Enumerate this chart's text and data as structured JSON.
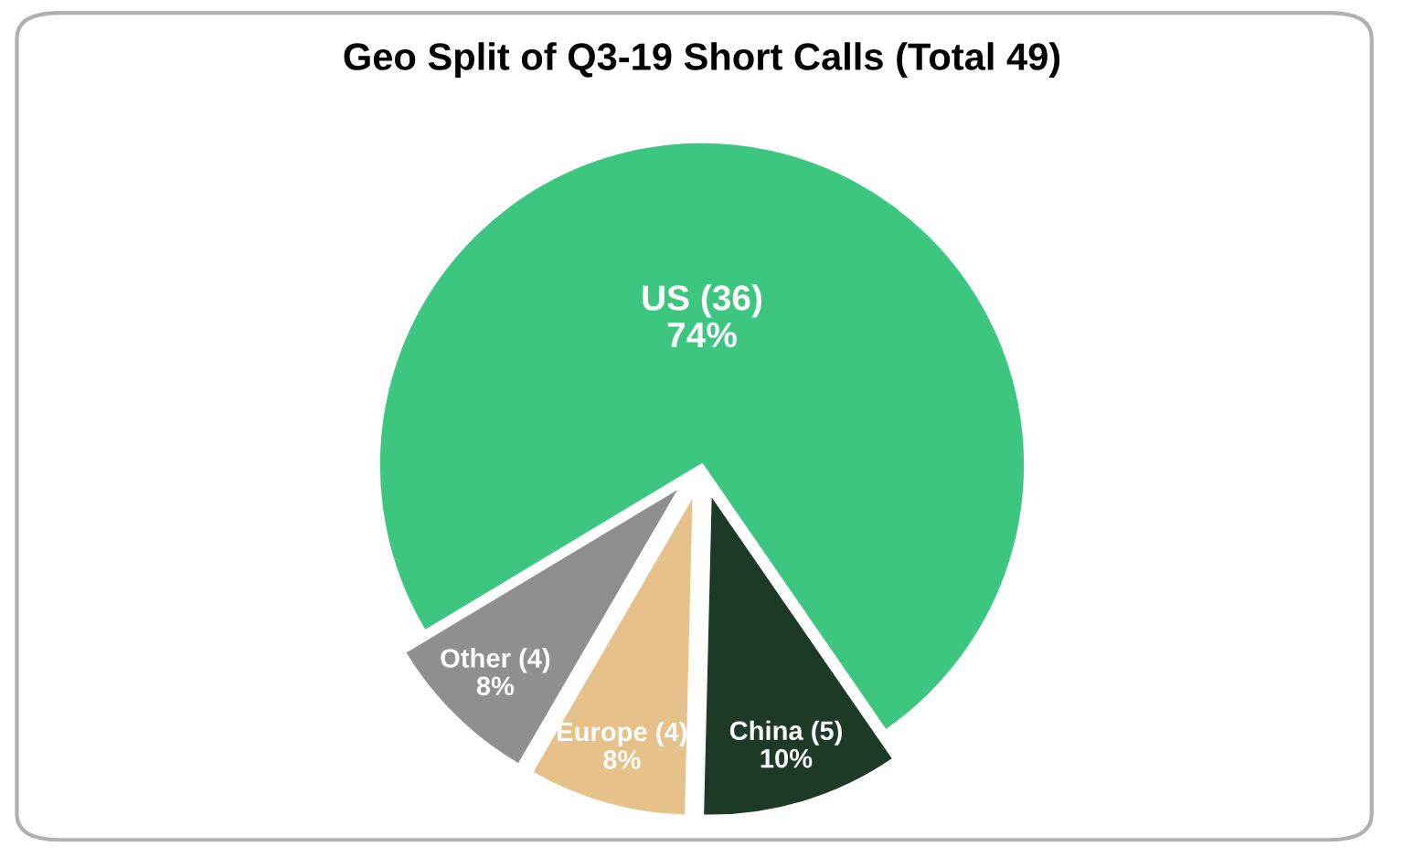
{
  "chart_data": {
    "type": "pie",
    "title": "Geo Split of Q3-19 Short Calls (Total 49)",
    "categories": [
      "US (36)",
      "China (5)",
      "Europe (4)",
      "Other (4)"
    ],
    "values": [
      74,
      10,
      8,
      8
    ],
    "value_labels": [
      "74%",
      "10%",
      "8%",
      "8%"
    ],
    "colors": [
      "#3cc67f",
      "#1d3a27",
      "#e6c189",
      "#8f8f8f"
    ]
  }
}
